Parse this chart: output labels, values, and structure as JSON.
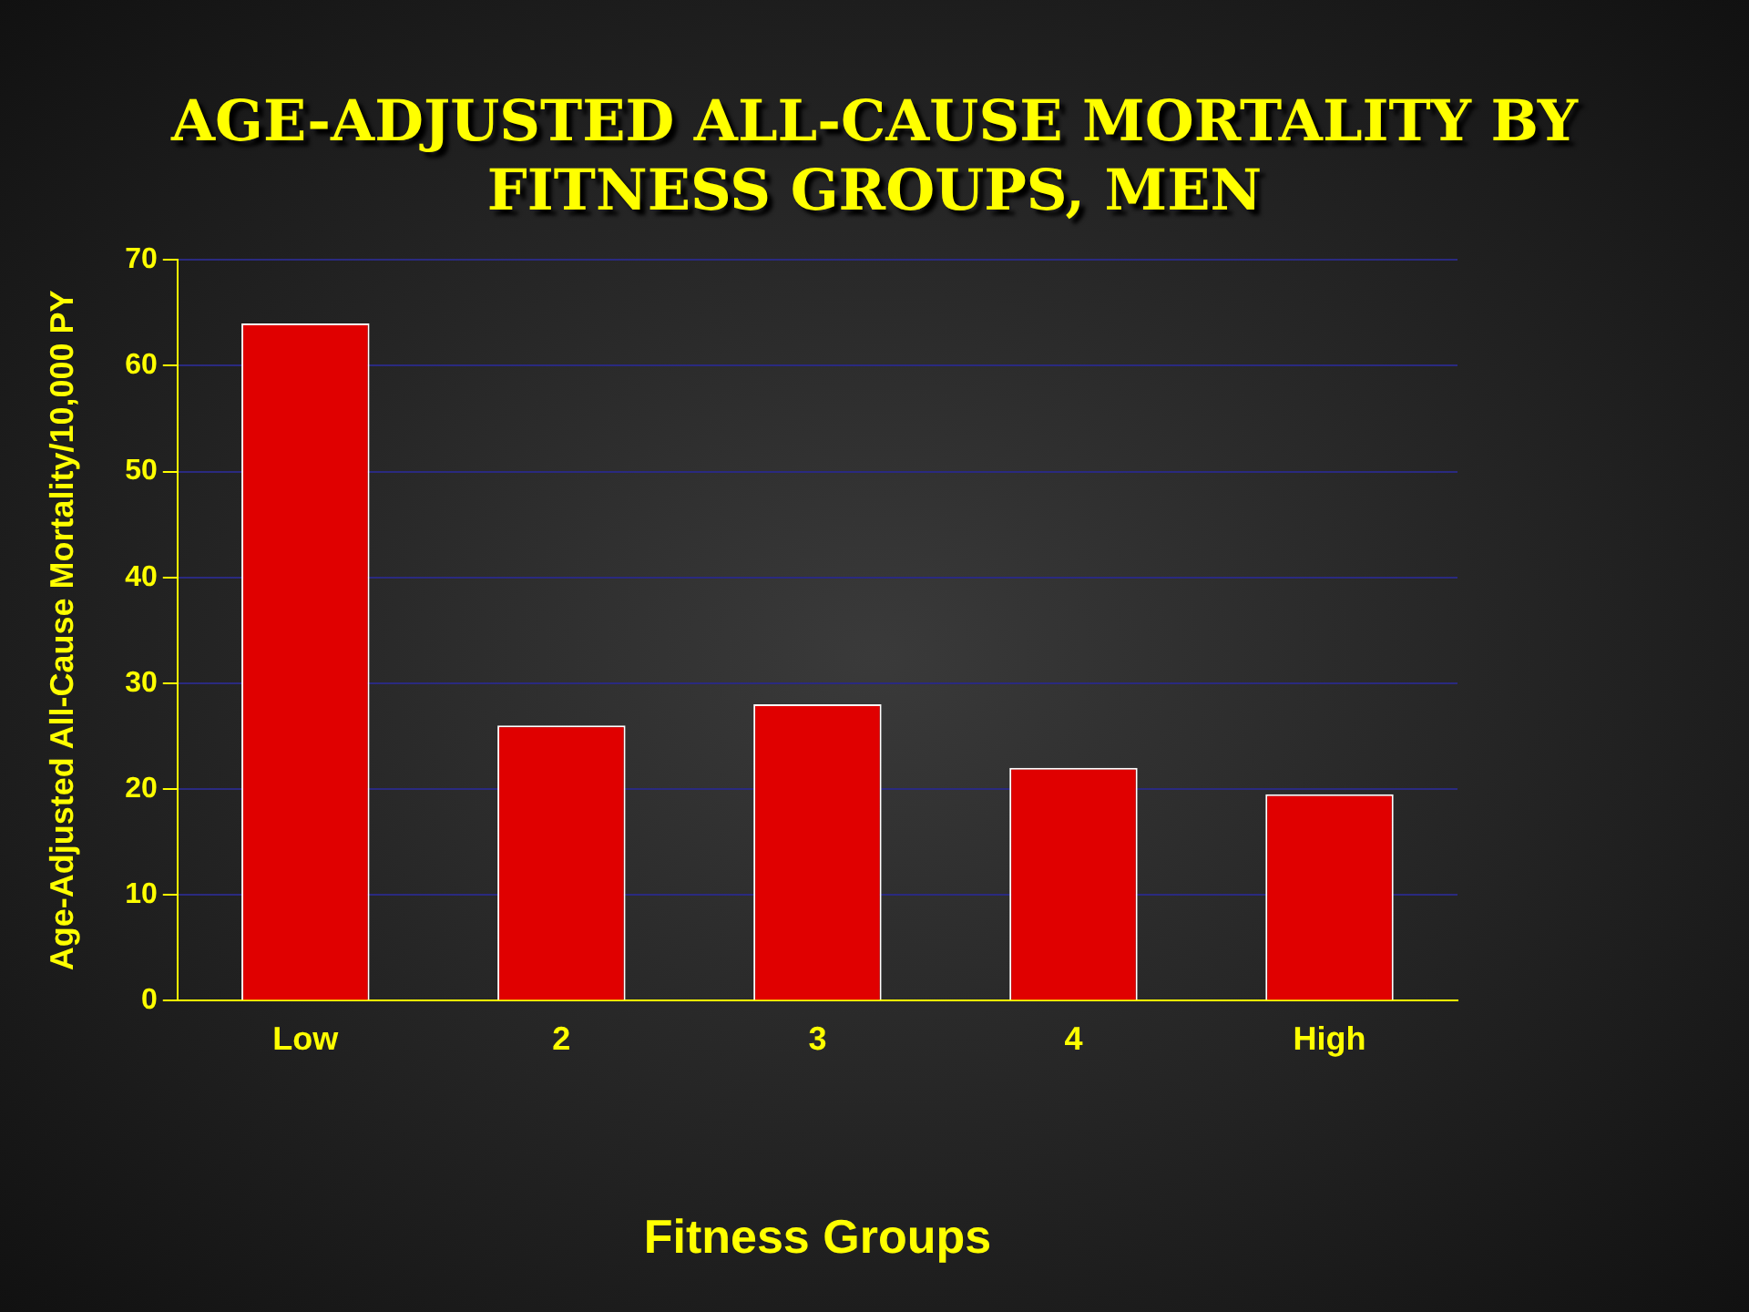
{
  "chart_data": {
    "type": "bar",
    "title": "AGE-ADJUSTED ALL-CAUSE MORTALITY BY FITNESS GROUPS, MEN",
    "xlabel": "Fitness Groups",
    "ylabel": "Age-Adjusted All-Cause Mortality/10,000 PY",
    "categories": [
      "Low",
      "2",
      "3",
      "4",
      "High"
    ],
    "values": [
      64,
      26,
      28,
      22,
      19.5
    ],
    "color": "#e00000",
    "ylim": [
      0,
      70
    ],
    "yticks": [
      0,
      10,
      20,
      30,
      40,
      50,
      60,
      70
    ],
    "grid": "y"
  }
}
